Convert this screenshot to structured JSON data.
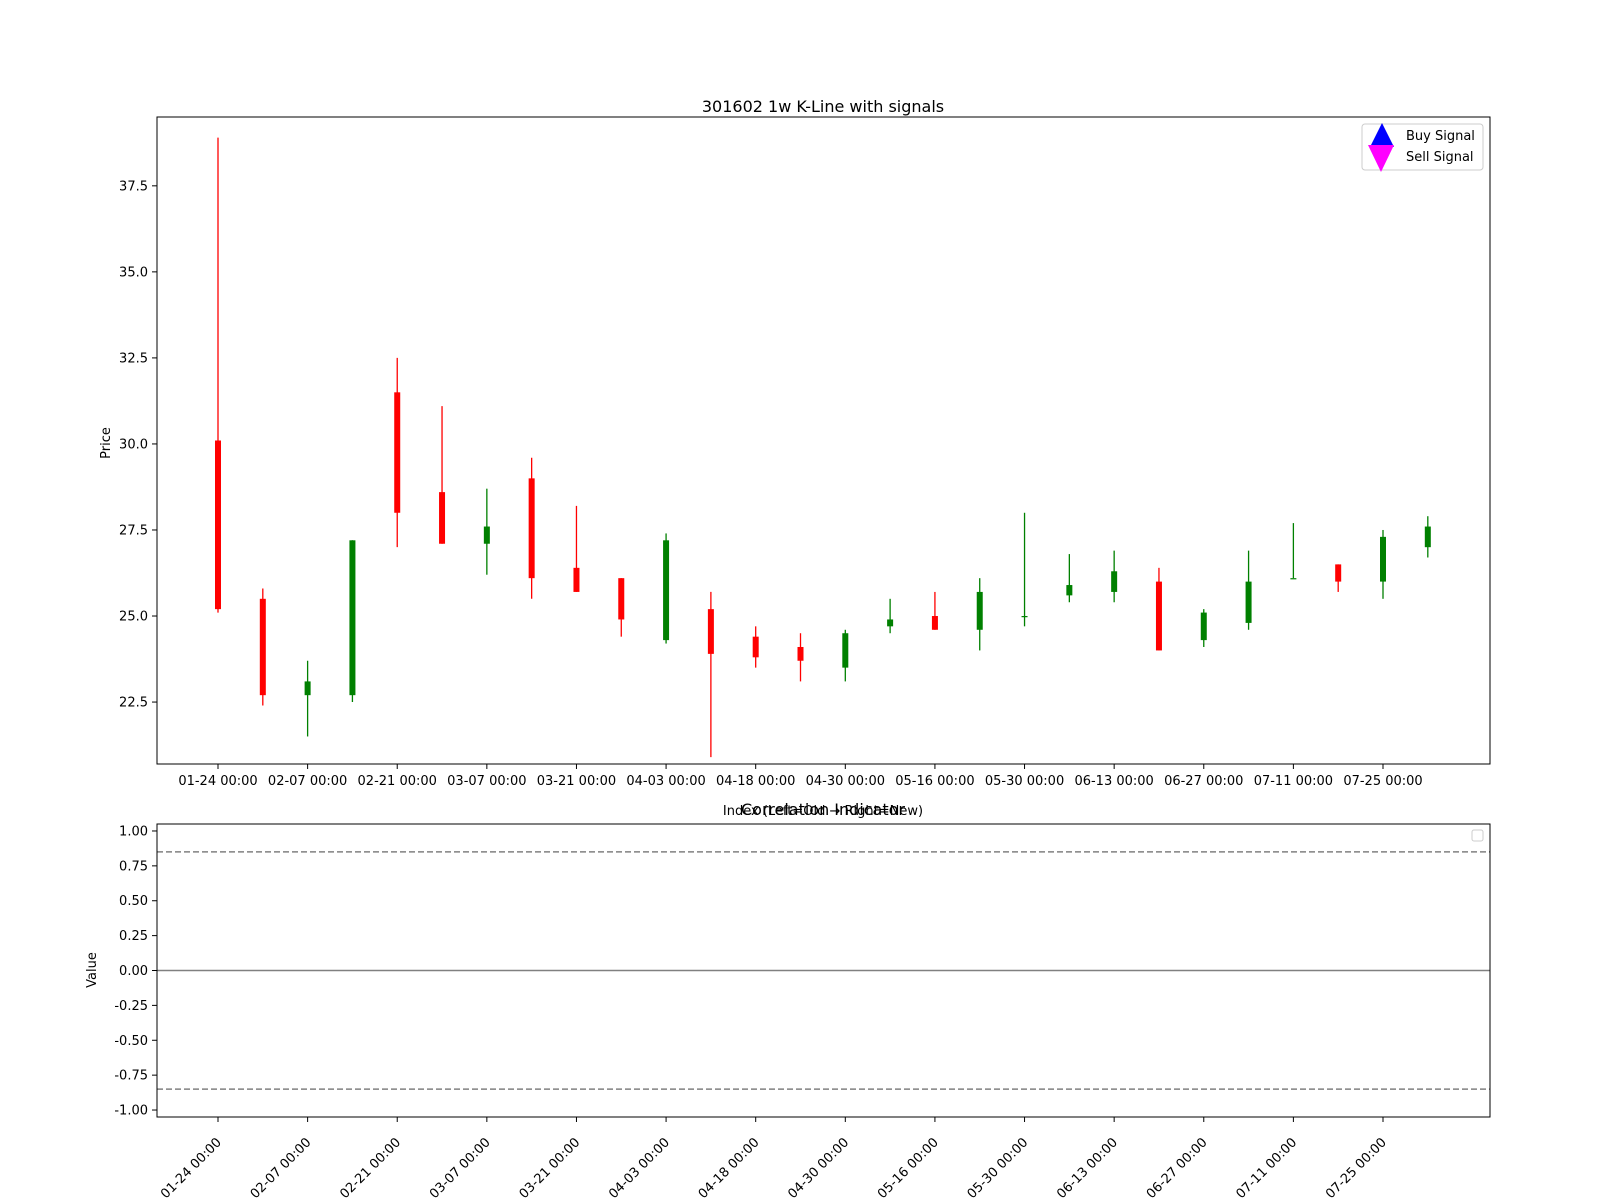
{
  "chart_data": [
    {
      "type": "candlestick",
      "title": "301602 1w K-Line with signals",
      "xlabel": "Index (Left=Old → Right=New)",
      "ylabel": "Price",
      "ylim": [
        20.7,
        39.5
      ],
      "yticks": [
        "22.5",
        "25.0",
        "27.5",
        "30.0",
        "32.5",
        "35.0",
        "37.5"
      ],
      "xticks": [
        "01-24 00:00",
        "02-07 00:00",
        "02-21 00:00",
        "03-07 00:00",
        "03-21 00:00",
        "04-03 00:00",
        "04-18 00:00",
        "04-30 00:00",
        "05-16 00:00",
        "05-30 00:00",
        "06-13 00:00",
        "06-27 00:00",
        "07-11 00:00",
        "07-25 00:00"
      ],
      "legend": {
        "placement": "upper right",
        "entries": [
          {
            "label": "Buy Signal",
            "color": "#0000ff",
            "marker": "triangle-up"
          },
          {
            "label": "Sell Signal",
            "color": "#ff00ff",
            "marker": "triangle-down"
          }
        ]
      },
      "colors": {
        "up": "#008000",
        "down": "#ff0000"
      },
      "grid": false,
      "candles": [
        {
          "o": 30.1,
          "h": 38.9,
          "l": 25.1,
          "c": 25.2
        },
        {
          "o": 25.5,
          "h": 25.8,
          "l": 22.4,
          "c": 22.7
        },
        {
          "o": 22.7,
          "h": 23.7,
          "l": 21.5,
          "c": 23.1
        },
        {
          "o": 22.7,
          "h": 27.2,
          "l": 22.5,
          "c": 27.2
        },
        {
          "o": 31.5,
          "h": 32.5,
          "l": 27.0,
          "c": 28.0
        },
        {
          "o": 28.6,
          "h": 31.1,
          "l": 27.1,
          "c": 27.1
        },
        {
          "o": 27.1,
          "h": 28.7,
          "l": 26.2,
          "c": 27.6
        },
        {
          "o": 29.0,
          "h": 29.6,
          "l": 25.5,
          "c": 26.1
        },
        {
          "o": 26.4,
          "h": 28.2,
          "l": 25.7,
          "c": 25.7
        },
        {
          "o": 26.1,
          "h": 26.1,
          "l": 24.4,
          "c": 24.9
        },
        {
          "o": 24.3,
          "h": 27.4,
          "l": 24.2,
          "c": 27.2
        },
        {
          "o": 25.2,
          "h": 25.7,
          "l": 20.9,
          "c": 23.9
        },
        {
          "o": 24.4,
          "h": 24.7,
          "l": 23.5,
          "c": 23.8
        },
        {
          "o": 24.1,
          "h": 24.5,
          "l": 23.1,
          "c": 23.7
        },
        {
          "o": 23.5,
          "h": 24.6,
          "l": 23.1,
          "c": 24.5
        },
        {
          "o": 24.7,
          "h": 25.5,
          "l": 24.5,
          "c": 24.9
        },
        {
          "o": 25.0,
          "h": 25.7,
          "l": 24.6,
          "c": 24.6
        },
        {
          "o": 24.6,
          "h": 26.1,
          "l": 24.0,
          "c": 25.7
        },
        {
          "o": 25.0,
          "h": 28.0,
          "l": 24.7,
          "c": 25.0
        },
        {
          "o": 25.6,
          "h": 26.8,
          "l": 25.4,
          "c": 25.9
        },
        {
          "o": 25.7,
          "h": 26.9,
          "l": 25.4,
          "c": 26.3
        },
        {
          "o": 26.0,
          "h": 26.4,
          "l": 24.0,
          "c": 24.0
        },
        {
          "o": 24.3,
          "h": 25.2,
          "l": 24.1,
          "c": 25.1
        },
        {
          "o": 24.8,
          "h": 26.9,
          "l": 24.6,
          "c": 26.0
        },
        {
          "o": 26.1,
          "h": 27.7,
          "l": 26.1,
          "c": 26.1
        },
        {
          "o": 26.5,
          "h": 26.5,
          "l": 25.7,
          "c": 26.0
        },
        {
          "o": 26.0,
          "h": 27.5,
          "l": 25.5,
          "c": 27.3
        },
        {
          "o": 27.0,
          "h": 27.9,
          "l": 26.7,
          "c": 27.6
        }
      ]
    },
    {
      "type": "line",
      "title": "Correlation Indicator",
      "xlabel": "",
      "ylabel": "Value",
      "ylim": [
        -1.05,
        1.05
      ],
      "yticks": [
        "1.00",
        "0.75",
        "0.50",
        "0.25",
        "0.00",
        "-0.25",
        "-0.50",
        "-0.75",
        "-1.00"
      ],
      "xticks": [
        "01-24 00:00",
        "02-07 00:00",
        "02-21 00:00",
        "03-07 00:00",
        "03-21 00:00",
        "04-03 00:00",
        "04-18 00:00",
        "04-30 00:00",
        "05-16 00:00",
        "05-30 00:00",
        "06-13 00:00",
        "06-27 00:00",
        "07-11 00:00",
        "07-25 00:00"
      ],
      "reference_lines": [
        {
          "y": 0.85,
          "style": "dashed",
          "color": "#808080"
        },
        {
          "y": 0.0,
          "style": "solid",
          "color": "#808080"
        },
        {
          "y": -0.85,
          "style": "dashed",
          "color": "#808080"
        }
      ],
      "series": [],
      "grid": false
    }
  ]
}
